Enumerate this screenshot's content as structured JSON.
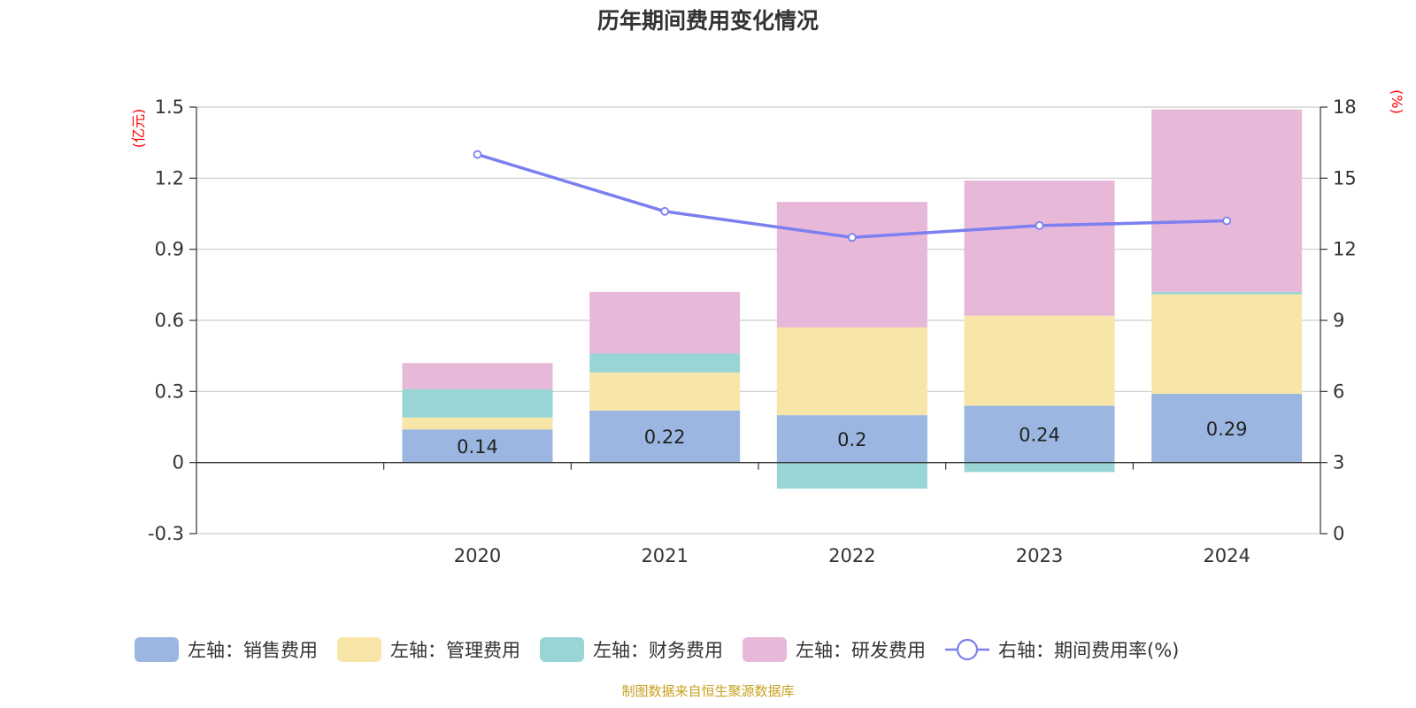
{
  "colors": {
    "sales": "#9bb7e1",
    "admin": "#f8e6a8",
    "finance": "#98d5d4",
    "rd": "#e7b8d8",
    "rate_line": "#7b7ff0",
    "unit_label": "#ff0000",
    "source": "#c8a020"
  },
  "chart_data": {
    "type": "bar",
    "title": "历年期间费用变化情况",
    "stacked": true,
    "categories": [
      "2020",
      "2021",
      "2022",
      "2023",
      "2024"
    ],
    "y_left": {
      "unit": "(亿元)",
      "ylim": [
        -0.3,
        1.5
      ],
      "ticks": [
        "-0.3",
        "0",
        "0.3",
        "0.6",
        "0.9",
        "1.2",
        "1.5"
      ]
    },
    "y_right": {
      "unit": "(%)",
      "ylim": [
        0,
        18
      ],
      "ticks": [
        "0",
        "3",
        "6",
        "9",
        "12",
        "15",
        "18"
      ]
    },
    "grid": true,
    "legend_position": "bottom",
    "series": [
      {
        "name": "左轴：销售费用",
        "key": "sales",
        "axis": "left",
        "values": [
          0.14,
          0.22,
          0.2,
          0.24,
          0.29
        ],
        "labels": [
          "0.14",
          "0.22",
          "0.2",
          "0.24",
          "0.29"
        ]
      },
      {
        "name": "左轴：管理费用",
        "key": "admin",
        "axis": "left",
        "values": [
          0.05,
          0.16,
          0.37,
          0.38,
          0.42
        ]
      },
      {
        "name": "左轴：财务费用",
        "key": "finance",
        "axis": "left",
        "values": [
          0.12,
          0.08,
          -0.11,
          -0.04,
          0.01
        ]
      },
      {
        "name": "左轴：研发费用",
        "key": "rd",
        "axis": "left",
        "values": [
          0.11,
          0.26,
          0.53,
          0.57,
          0.77
        ]
      },
      {
        "name": "右轴：期间费用率(%)",
        "key": "rate_line",
        "axis": "right",
        "type": "line",
        "values": [
          16.0,
          13.6,
          12.5,
          13.0,
          13.2
        ]
      }
    ]
  },
  "footer": {
    "source": "制图数据来自恒生聚源数据库"
  }
}
